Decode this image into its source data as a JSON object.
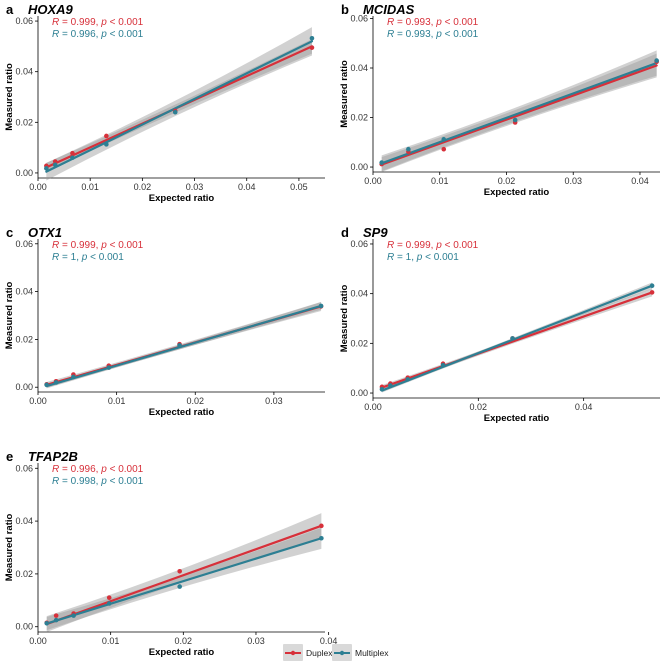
{
  "colors": {
    "duplex": "#d7303a",
    "multiplex": "#2d7f93",
    "band": "#9a9a9a"
  },
  "legend": {
    "items": [
      {
        "label": "Duplex",
        "color": "#d7303a"
      },
      {
        "label": "Multiplex",
        "color": "#2d7f93"
      }
    ]
  },
  "chart_data": [
    {
      "type": "scatter",
      "letter": "a",
      "title": "HOXA9",
      "xlabel": "Expected ratio",
      "ylabel": "Measured ratio",
      "xlim": [
        0,
        0.055
      ],
      "ylim": [
        -0.002,
        0.062
      ],
      "xticks": [
        0.0,
        0.01,
        0.02,
        0.03,
        0.04,
        0.05
      ],
      "yticks": [
        0.0,
        0.02,
        0.04,
        0.06
      ],
      "xtick_labels": [
        "0.00",
        "0.01",
        "0.02",
        "0.03",
        "0.04",
        "0.05"
      ],
      "ytick_labels": [
        "0.00",
        "0.02",
        "0.04",
        "0.06"
      ],
      "stats": [
        {
          "series": "Duplex",
          "r": "0.999",
          "p": "0.001"
        },
        {
          "series": "Multiplex",
          "r": "0.996",
          "p": "0.001"
        }
      ],
      "series": [
        {
          "name": "Duplex",
          "x": [
            0.0016,
            0.0033,
            0.0066,
            0.0131,
            0.0263,
            0.0525
          ],
          "y": [
            0.0028,
            0.0045,
            0.0078,
            0.0146,
            0.0245,
            0.0495
          ],
          "fit": [
            0.0022,
            0.05
          ],
          "band": 0.0018
        },
        {
          "name": "Multiplex",
          "x": [
            0.0016,
            0.0033,
            0.0066,
            0.0131,
            0.0263,
            0.0525
          ],
          "y": [
            0.0018,
            0.0032,
            0.006,
            0.0113,
            0.024,
            0.0532
          ],
          "fit": [
            0.0005,
            0.052
          ],
          "band": 0.0035
        }
      ]
    },
    {
      "type": "scatter",
      "letter": "b",
      "title": "MCIDAS",
      "xlabel": "Expected ratio",
      "ylabel": "Measured ratio",
      "xlim": [
        0,
        0.043
      ],
      "ylim": [
        -0.002,
        0.061
      ],
      "xticks": [
        0.0,
        0.01,
        0.02,
        0.03,
        0.04
      ],
      "yticks": [
        0.0,
        0.02,
        0.04,
        0.06
      ],
      "xtick_labels": [
        "0.00",
        "0.01",
        "0.02",
        "0.03",
        "0.04"
      ],
      "ytick_labels": [
        "0.00",
        "0.02",
        "0.04",
        "0.06"
      ],
      "stats": [
        {
          "series": "Duplex",
          "r": "0.993",
          "p": "0.001"
        },
        {
          "series": "Multiplex",
          "r": "0.993",
          "p": "0.001"
        }
      ],
      "series": [
        {
          "name": "Duplex",
          "x": [
            0.0013,
            0.0053,
            0.0106,
            0.0213,
            0.0425
          ],
          "y": [
            0.0012,
            0.0062,
            0.0072,
            0.018,
            0.0425
          ],
          "fit": [
            0.001,
            0.041
          ],
          "band": 0.003
        },
        {
          "name": "Multiplex",
          "x": [
            0.0013,
            0.0053,
            0.0106,
            0.0213,
            0.0425
          ],
          "y": [
            0.0018,
            0.0072,
            0.0112,
            0.019,
            0.043
          ],
          "fit": [
            0.0015,
            0.042
          ],
          "band": 0.0032
        }
      ]
    },
    {
      "type": "scatter",
      "letter": "c",
      "title": "OTX1",
      "xlabel": "Expected ratio",
      "ylabel": "Measured ratio",
      "xlim": [
        0,
        0.0365
      ],
      "ylim": [
        -0.002,
        0.062
      ],
      "xticks": [
        0.0,
        0.01,
        0.02,
        0.03
      ],
      "yticks": [
        0.0,
        0.02,
        0.04,
        0.06
      ],
      "xtick_labels": [
        "0.00",
        "0.01",
        "0.02",
        "0.03"
      ],
      "ytick_labels": [
        "0.00",
        "0.02",
        "0.04",
        "0.06"
      ],
      "stats": [
        {
          "series": "Duplex",
          "r": "0.999",
          "p": "0.001"
        },
        {
          "series": "Multiplex",
          "r": "1",
          "p": "0.001"
        }
      ],
      "series": [
        {
          "name": "Duplex",
          "x": [
            0.0011,
            0.0023,
            0.0045,
            0.009,
            0.018,
            0.036
          ],
          "y": [
            0.0012,
            0.0025,
            0.0053,
            0.009,
            0.018,
            0.0338
          ],
          "fit": [
            0.001,
            0.0338
          ],
          "band": 0.0012
        },
        {
          "name": "Multiplex",
          "x": [
            0.0011,
            0.0023,
            0.0045,
            0.009,
            0.018,
            0.036
          ],
          "y": [
            0.001,
            0.002,
            0.0043,
            0.0082,
            0.0175,
            0.034
          ],
          "fit": [
            0.0005,
            0.034
          ],
          "band": 0.001
        }
      ]
    },
    {
      "type": "scatter",
      "letter": "d",
      "title": "SP9",
      "xlabel": "Expected ratio",
      "ylabel": "Measured ratio",
      "xlim": [
        0,
        0.0545
      ],
      "ylim": [
        -0.002,
        0.062
      ],
      "xticks": [
        0.0,
        0.02,
        0.04
      ],
      "yticks": [
        0.0,
        0.02,
        0.04,
        0.06
      ],
      "xtick_labels": [
        "0.00",
        "0.02",
        "0.04"
      ],
      "ytick_labels": [
        "0.00",
        "0.02",
        "0.04",
        "0.06"
      ],
      "stats": [
        {
          "series": "Duplex",
          "r": "0.999",
          "p": "0.001"
        },
        {
          "series": "Multiplex",
          "r": "1",
          "p": "0.001"
        }
      ],
      "series": [
        {
          "name": "Duplex",
          "x": [
            0.0017,
            0.0033,
            0.0066,
            0.0133,
            0.0265,
            0.053
          ],
          "y": [
            0.0025,
            0.0038,
            0.0062,
            0.0118,
            0.022,
            0.0405
          ],
          "fit": [
            0.0022,
            0.0405
          ],
          "band": 0.001
        },
        {
          "name": "Multiplex",
          "x": [
            0.0017,
            0.0033,
            0.0066,
            0.0133,
            0.0265,
            0.053
          ],
          "y": [
            0.0015,
            0.003,
            0.0055,
            0.0112,
            0.022,
            0.0432
          ],
          "fit": [
            0.001,
            0.0432
          ],
          "band": 0.0008
        }
      ]
    },
    {
      "type": "scatter",
      "letter": "e",
      "title": "TFAP2B",
      "xlabel": "Expected ratio",
      "ylabel": "Measured ratio",
      "xlim": [
        0,
        0.0395
      ],
      "ylim": [
        -0.002,
        0.062
      ],
      "xticks": [
        0.0,
        0.01,
        0.02,
        0.03,
        0.04
      ],
      "yticks": [
        0.0,
        0.02,
        0.04,
        0.06
      ],
      "xtick_labels": [
        "0.00",
        "0.01",
        "0.02",
        "0.03",
        "0.04"
      ],
      "ytick_labels": [
        "0.00",
        "0.02",
        "0.04",
        "0.06"
      ],
      "stats": [
        {
          "series": "Duplex",
          "r": "0.996",
          "p": "0.001"
        },
        {
          "series": "Multiplex",
          "r": "0.998",
          "p": "0.001"
        }
      ],
      "series": [
        {
          "name": "Duplex",
          "x": [
            0.0012,
            0.0025,
            0.0049,
            0.0098,
            0.0195,
            0.039
          ],
          "y": [
            0.0015,
            0.0042,
            0.005,
            0.011,
            0.021,
            0.0382
          ],
          "fit": [
            0.001,
            0.0382
          ],
          "band": 0.003
        },
        {
          "name": "Multiplex",
          "x": [
            0.0012,
            0.0025,
            0.0049,
            0.0098,
            0.0195,
            0.039
          ],
          "y": [
            0.0013,
            0.0025,
            0.0042,
            0.0088,
            0.0152,
            0.0335
          ],
          "fit": [
            0.0012,
            0.0335
          ],
          "band": 0.0025
        }
      ]
    }
  ]
}
